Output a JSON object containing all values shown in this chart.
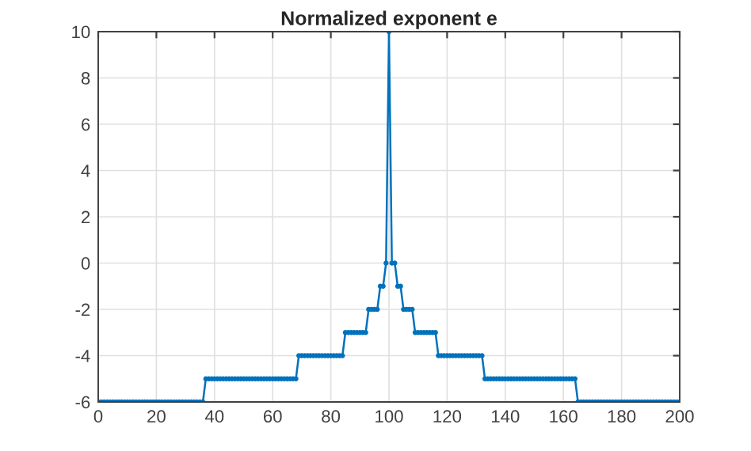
{
  "chart_data": {
    "type": "line",
    "title": "Normalized exponent e",
    "x": [
      0,
      1,
      2,
      3,
      4,
      5,
      6,
      7,
      8,
      9,
      10,
      11,
      12,
      13,
      14,
      15,
      16,
      17,
      18,
      19,
      20,
      21,
      22,
      23,
      24,
      25,
      26,
      27,
      28,
      29,
      30,
      31,
      32,
      33,
      34,
      35,
      36,
      37,
      38,
      39,
      40,
      41,
      42,
      43,
      44,
      45,
      46,
      47,
      48,
      49,
      50,
      51,
      52,
      53,
      54,
      55,
      56,
      57,
      58,
      59,
      60,
      61,
      62,
      63,
      64,
      65,
      66,
      67,
      68,
      69,
      70,
      71,
      72,
      73,
      74,
      75,
      76,
      77,
      78,
      79,
      80,
      81,
      82,
      83,
      84,
      85,
      86,
      87,
      88,
      89,
      90,
      91,
      92,
      93,
      94,
      95,
      96,
      97,
      98,
      99,
      100,
      101,
      102,
      103,
      104,
      105,
      106,
      107,
      108,
      109,
      110,
      111,
      112,
      113,
      114,
      115,
      116,
      117,
      118,
      119,
      120,
      121,
      122,
      123,
      124,
      125,
      126,
      127,
      128,
      129,
      130,
      131,
      132,
      133,
      134,
      135,
      136,
      137,
      138,
      139,
      140,
      141,
      142,
      143,
      144,
      145,
      146,
      147,
      148,
      149,
      150,
      151,
      152,
      153,
      154,
      155,
      156,
      157,
      158,
      159,
      160,
      161,
      162,
      163,
      164,
      165,
      166,
      167,
      168,
      169,
      170,
      171,
      172,
      173,
      174,
      175,
      176,
      177,
      178,
      179,
      180,
      181,
      182,
      183,
      184,
      185,
      186,
      187,
      188,
      189,
      190,
      191,
      192,
      193,
      194,
      195,
      196,
      197,
      198,
      199,
      200
    ],
    "series": [
      {
        "color": "#0072bd",
        "values": [
          -6,
          -6,
          -6,
          -6,
          -6,
          -6,
          -6,
          -6,
          -6,
          -6,
          -6,
          -6,
          -6,
          -6,
          -6,
          -6,
          -6,
          -6,
          -6,
          -6,
          -6,
          -6,
          -6,
          -6,
          -6,
          -6,
          -6,
          -6,
          -6,
          -6,
          -6,
          -6,
          -6,
          -6,
          -6,
          -6,
          -6,
          -5,
          -5,
          -5,
          -5,
          -5,
          -5,
          -5,
          -5,
          -5,
          -5,
          -5,
          -5,
          -5,
          -5,
          -5,
          -5,
          -5,
          -5,
          -5,
          -5,
          -5,
          -5,
          -5,
          -5,
          -5,
          -5,
          -5,
          -5,
          -5,
          -5,
          -5,
          -5,
          -4,
          -4,
          -4,
          -4,
          -4,
          -4,
          -4,
          -4,
          -4,
          -4,
          -4,
          -4,
          -4,
          -4,
          -4,
          -4,
          -3,
          -3,
          -3,
          -3,
          -3,
          -3,
          -3,
          -3,
          -2,
          -2,
          -2,
          -2,
          -1,
          -1,
          0,
          10,
          0,
          0,
          -1,
          -1,
          -2,
          -2,
          -2,
          -2,
          -3,
          -3,
          -3,
          -3,
          -3,
          -3,
          -3,
          -3,
          -4,
          -4,
          -4,
          -4,
          -4,
          -4,
          -4,
          -4,
          -4,
          -4,
          -4,
          -4,
          -4,
          -4,
          -4,
          -4,
          -5,
          -5,
          -5,
          -5,
          -5,
          -5,
          -5,
          -5,
          -5,
          -5,
          -5,
          -5,
          -5,
          -5,
          -5,
          -5,
          -5,
          -5,
          -5,
          -5,
          -5,
          -5,
          -5,
          -5,
          -5,
          -5,
          -5,
          -5,
          -5,
          -5,
          -5,
          -5,
          -6,
          -6,
          -6,
          -6,
          -6,
          -6,
          -6,
          -6,
          -6,
          -6,
          -6,
          -6,
          -6,
          -6,
          -6,
          -6,
          -6,
          -6,
          -6,
          -6,
          -6,
          -6,
          -6,
          -6,
          -6,
          -6,
          -6,
          -6,
          -6,
          -6,
          -6,
          -6,
          -6,
          -6,
          -6,
          -6
        ]
      }
    ],
    "xlim": [
      0,
      200
    ],
    "ylim": [
      -6,
      10
    ],
    "xticks": [
      0,
      20,
      40,
      60,
      80,
      100,
      120,
      140,
      160,
      180,
      200
    ],
    "yticks": [
      -6,
      -4,
      -2,
      0,
      2,
      4,
      6,
      8,
      10
    ],
    "grid": true,
    "marker": "circle",
    "line_style": "solid"
  }
}
